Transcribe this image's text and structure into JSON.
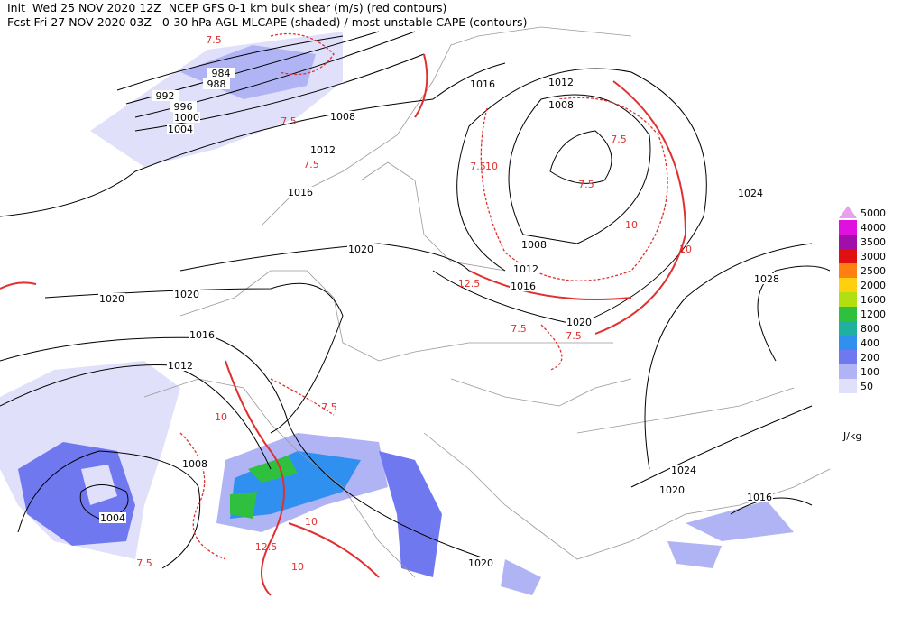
{
  "header": {
    "line1": "Init  Wed 25 NOV 2020 12Z  NCEP GFS 0-1 km bulk shear (m/s) (red contours)",
    "line2": "Fcst Fri 27 NOV 2020 03Z   0-30 hPa AGL MLCAPE (shaded) / most-unstable CAPE (contours)"
  },
  "legend": {
    "items": [
      {
        "label": "5000",
        "color": "#e8a0ec"
      },
      {
        "label": "4000",
        "color": "#e010e0"
      },
      {
        "label": "3500",
        "color": "#a010a8"
      },
      {
        "label": "3000",
        "color": "#e01010"
      },
      {
        "label": "2500",
        "color": "#ff8010"
      },
      {
        "label": "2000",
        "color": "#ffd010"
      },
      {
        "label": "1600",
        "color": "#b0e010"
      },
      {
        "label": "1200",
        "color": "#30c040"
      },
      {
        "label": "800",
        "color": "#20b0a0"
      },
      {
        "label": "400",
        "color": "#3090f0"
      },
      {
        "label": "200",
        "color": "#7078f0"
      },
      {
        "label": "100",
        "color": "#b0b4f4"
      },
      {
        "label": "50",
        "color": "#e0e0fa"
      }
    ],
    "unit": "J/kg"
  },
  "isobar_labels": [
    "984",
    "988",
    "992",
    "996",
    "1000",
    "1004",
    "1008",
    "1012",
    "1016",
    "1016",
    "1012",
    "1008",
    "1024",
    "1028",
    "1020",
    "1020",
    "1020",
    "1016",
    "1012",
    "1008",
    "1004",
    "1008",
    "1012",
    "1016",
    "1020",
    "1024",
    "1020",
    "1016",
    "1020"
  ],
  "shear_labels": [
    "7.5",
    "7.5",
    "7.5",
    "10",
    "7.5",
    "7.5",
    "7.5",
    "10",
    "10",
    "12.5",
    "7.5",
    "7.5",
    "10",
    "10",
    "12.5",
    "7.5",
    "10",
    "7.5"
  ]
}
